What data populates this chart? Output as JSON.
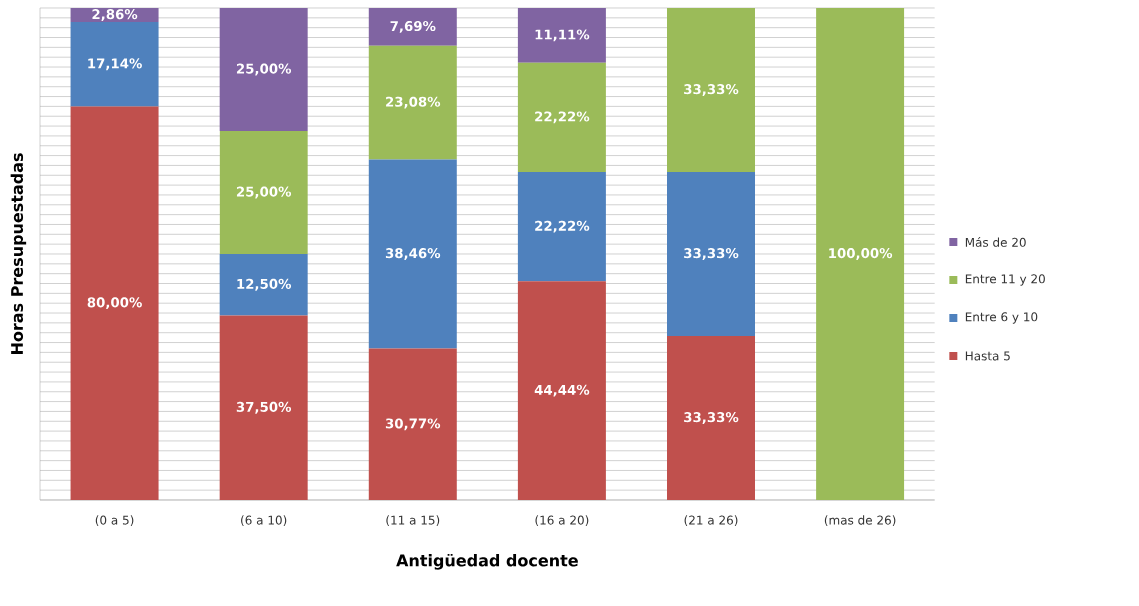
{
  "chart_data": {
    "type": "bar",
    "stacked": true,
    "xlabel": "Antigüedad docente",
    "ylabel": "Horas Presupuestadas",
    "categories": [
      "(0 a 5)",
      "(6 a 10)",
      "(11 a 15)",
      "(16 a 20)",
      "(21 a 26)",
      "(mas de 26)"
    ],
    "series": [
      {
        "name": "Hasta 5",
        "color": "#c0504d",
        "values": [
          80.0,
          37.5,
          30.77,
          44.44,
          33.33,
          null
        ],
        "value_labels": [
          "80,00%",
          "37,50%",
          "30,77%",
          "44,44%",
          "33,33%",
          null
        ]
      },
      {
        "name": "Entre 6 y 10",
        "color": "#4f81bd",
        "values": [
          17.14,
          12.5,
          38.46,
          22.22,
          33.33,
          null
        ],
        "value_labels": [
          "17,14%",
          "12,50%",
          "38,46%",
          "22,22%",
          "33,33%",
          null
        ]
      },
      {
        "name": "Entre 11 y 20",
        "color": "#9bbb59",
        "values": [
          null,
          25.0,
          23.08,
          22.22,
          33.33,
          100.0
        ],
        "value_labels": [
          null,
          "25,00%",
          "23,08%",
          "22,22%",
          "33,33%",
          "100,00%"
        ]
      },
      {
        "name": "Más de 20",
        "color": "#8064a2",
        "values": [
          2.86,
          25.0,
          7.69,
          11.11,
          null,
          null
        ],
        "value_labels": [
          "2,86%",
          "25,00%",
          "7,69%",
          "11,11%",
          null,
          null
        ]
      }
    ],
    "ylim": [
      0,
      100
    ],
    "yticks": [
      {
        "value": 0,
        "label": null
      },
      {
        "value": 2,
        "label": null
      },
      {
        "value": 4,
        "label": null
      },
      {
        "value": 6,
        "label": null
      },
      {
        "value": 8,
        "label": null
      },
      {
        "value": 10,
        "label": null
      },
      {
        "value": 12,
        "label": null
      },
      {
        "value": 14,
        "label": null
      },
      {
        "value": 16,
        "label": null
      },
      {
        "value": 18,
        "label": null
      },
      {
        "value": 20,
        "label": null
      },
      {
        "value": 22,
        "label": null
      },
      {
        "value": 24,
        "label": null
      },
      {
        "value": 26,
        "label": null
      },
      {
        "value": 28,
        "label": null
      },
      {
        "value": 30,
        "label": null
      },
      {
        "value": 32,
        "label": null
      },
      {
        "value": 34,
        "label": null
      },
      {
        "value": 36,
        "label": null
      },
      {
        "value": 38,
        "label": null
      },
      {
        "value": 40,
        "label": null
      },
      {
        "value": 42,
        "label": null
      },
      {
        "value": 44,
        "label": null
      },
      {
        "value": 46,
        "label": null
      },
      {
        "value": 48,
        "label": null
      },
      {
        "value": 50,
        "label": null
      },
      {
        "value": 52,
        "label": null
      },
      {
        "value": 54,
        "label": null
      },
      {
        "value": 56,
        "label": null
      },
      {
        "value": 58,
        "label": null
      },
      {
        "value": 60,
        "label": null
      },
      {
        "value": 62,
        "label": null
      },
      {
        "value": 64,
        "label": null
      },
      {
        "value": 66,
        "label": null
      },
      {
        "value": 68,
        "label": null
      },
      {
        "value": 70,
        "label": null
      },
      {
        "value": 72,
        "label": null
      },
      {
        "value": 74,
        "label": null
      },
      {
        "value": 76,
        "label": null
      },
      {
        "value": 78,
        "label": null
      },
      {
        "value": 80,
        "label": null
      },
      {
        "value": 82,
        "label": null
      },
      {
        "value": 84,
        "label": null
      },
      {
        "value": 86,
        "label": null
      },
      {
        "value": 88,
        "label": null
      },
      {
        "value": 90,
        "label": null
      },
      {
        "value": 92,
        "label": null
      },
      {
        "value": 94,
        "label": null
      },
      {
        "value": 96,
        "label": null
      },
      {
        "value": 98,
        "label": null
      },
      {
        "value": 100,
        "label": null
      }
    ],
    "grid": "y",
    "legend": "right",
    "tick_labels": "x"
  }
}
